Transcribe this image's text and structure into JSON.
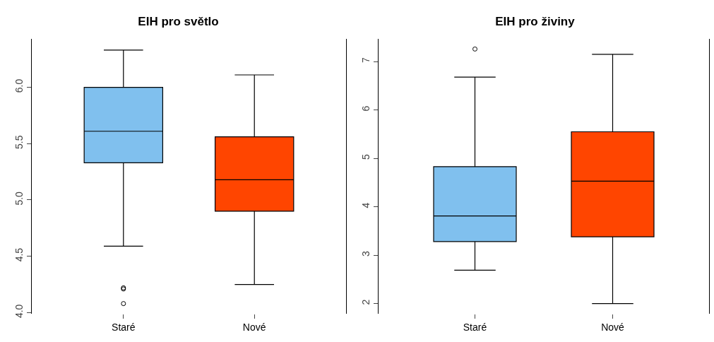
{
  "chart_data": [
    {
      "type": "box",
      "title": "EIH pro světlo",
      "categories": [
        "Staré",
        "Nové"
      ],
      "colors": [
        "#80c0ee",
        "#ff4500"
      ],
      "boxes": [
        {
          "low": 4.59,
          "q1": 5.33,
          "median": 5.61,
          "q3": 6.0,
          "high": 6.33,
          "outliers": [
            4.22,
            4.21,
            4.08
          ]
        },
        {
          "low": 4.25,
          "q1": 4.9,
          "median": 5.18,
          "q3": 5.56,
          "high": 6.11
        }
      ],
      "ylim": [
        3.99,
        6.43
      ],
      "yticks": [
        {
          "value": 4,
          "label": "4.0"
        },
        4.5,
        {
          "value": 5,
          "label": "5.0"
        },
        5.5,
        {
          "value": 6,
          "label": "6.0"
        }
      ]
    },
    {
      "type": "box",
      "title": "EIH pro živiny",
      "categories": [
        "Staré",
        "Nové"
      ],
      "colors": [
        "#80c0ee",
        "#ff4500"
      ],
      "boxes": [
        {
          "low": 2.69,
          "q1": 3.28,
          "median": 3.81,
          "q3": 4.83,
          "high": 6.68,
          "outliers": [
            7.26
          ]
        },
        {
          "low": 2.0,
          "q1": 3.38,
          "median": 4.53,
          "q3": 5.55,
          "high": 7.15
        }
      ],
      "ylim": [
        1.79,
        7.47
      ],
      "yticks": [
        2,
        3,
        4,
        5,
        6,
        7
      ]
    }
  ]
}
